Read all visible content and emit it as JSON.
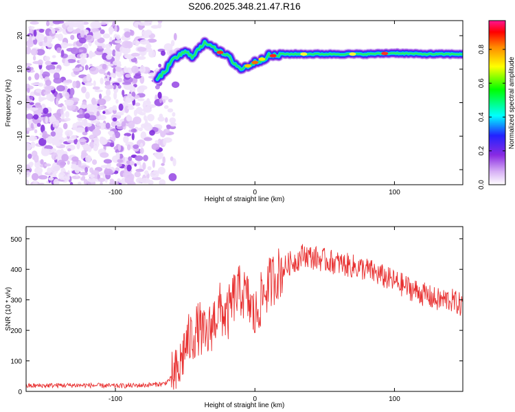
{
  "chart_data": [
    {
      "type": "heatmap",
      "title": "S206.2025.348.21.47.R16",
      "xlabel": "Height of straight line (km)",
      "ylabel": "Frequency (Hz)",
      "xlim": [
        -164,
        149
      ],
      "ylim": [
        -24.5,
        24.5
      ],
      "xticks": [
        -100,
        0,
        100
      ],
      "yticks": [
        -20,
        -10,
        0,
        10,
        20
      ],
      "colorbar": {
        "label": "Normalized spectral amplitude",
        "range": [
          0.0,
          0.97
        ],
        "ticks": [
          0.0,
          0.2,
          0.4,
          0.6,
          0.8
        ],
        "tick_labels": [
          "0.0",
          "0.2",
          "0.4",
          "0.6",
          "0.8"
        ],
        "colormap": [
          "#ffffff",
          "#d7b0f5",
          "#8a2be2",
          "#2222ff",
          "#00ffff",
          "#00ff00",
          "#ffff00",
          "#ff8800",
          "#ff0000",
          "#ff1493"
        ]
      },
      "ridge": {
        "x": [
          -70,
          -65,
          -60,
          -55,
          -50,
          -45,
          -40,
          -35,
          -30,
          -25,
          -20,
          -15,
          -10,
          -5,
          0,
          5,
          10,
          15,
          20,
          40,
          60,
          80,
          100,
          120,
          140,
          149
        ],
        "freq": [
          7,
          9,
          12,
          14,
          15,
          14,
          16,
          18,
          17,
          15,
          14,
          12,
          10,
          11,
          12,
          13,
          14,
          14,
          14.5,
          14.5,
          14.5,
          14.5,
          14.8,
          14.5,
          14.5,
          14.5
        ]
      },
      "noise_region_x": [
        -164,
        -65
      ]
    },
    {
      "type": "line",
      "xlabel": "Height of straight line (km)",
      "ylabel": "SNR (10 * v/v)",
      "xlim": [
        -164,
        149
      ],
      "ylim": [
        0,
        540
      ],
      "xticks": [
        -100,
        0,
        100
      ],
      "yticks": [
        0,
        100,
        200,
        300,
        400,
        500
      ],
      "color": "#e83030",
      "series": [
        {
          "name": "SNR",
          "x": [
            -164,
            -140,
            -120,
            -100,
            -80,
            -65,
            -55,
            -50,
            -45,
            -40,
            -35,
            -30,
            -25,
            -20,
            -15,
            -10,
            -5,
            0,
            5,
            10,
            15,
            20,
            25,
            30,
            35,
            40,
            50,
            60,
            70,
            80,
            90,
            100,
            110,
            120,
            130,
            140,
            149
          ],
          "values": [
            18,
            20,
            20,
            18,
            20,
            25,
            60,
            150,
            180,
            210,
            170,
            230,
            270,
            240,
            310,
            330,
            300,
            240,
            310,
            350,
            380,
            400,
            420,
            430,
            450,
            440,
            430,
            420,
            410,
            400,
            380,
            360,
            340,
            320,
            300,
            300,
            280
          ]
        }
      ],
      "noise_amplitude": [
        {
          "x_from": -164,
          "x_to": -60,
          "amp": 8
        },
        {
          "x_from": -60,
          "x_to": 20,
          "amp": 90
        },
        {
          "x_from": 20,
          "x_to": 149,
          "amp": 40
        }
      ]
    }
  ]
}
